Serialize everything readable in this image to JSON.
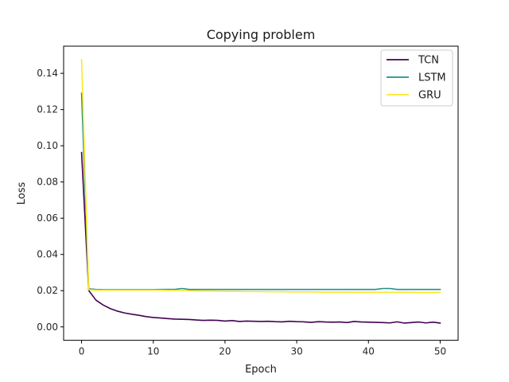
{
  "chart_data": {
    "type": "line",
    "title": "Copying problem",
    "xlabel": "Epoch",
    "ylabel": "Loss",
    "xlim": [
      -2.5,
      52.5
    ],
    "ylim": [
      -0.0074,
      0.155
    ],
    "xticks": [
      0,
      10,
      20,
      30,
      40,
      50
    ],
    "xtick_labels": [
      "0",
      "10",
      "20",
      "30",
      "40",
      "50"
    ],
    "yticks": [
      0.0,
      0.02,
      0.04,
      0.06,
      0.08,
      0.1,
      0.12,
      0.14
    ],
    "ytick_labels": [
      "0.00",
      "0.02",
      "0.04",
      "0.06",
      "0.08",
      "0.10",
      "0.12",
      "0.14"
    ],
    "grid": false,
    "legend_position": "top-right",
    "x": [
      0,
      1,
      2,
      3,
      4,
      5,
      6,
      7,
      8,
      9,
      10,
      11,
      12,
      13,
      14,
      15,
      16,
      17,
      18,
      19,
      20,
      21,
      22,
      23,
      24,
      25,
      26,
      27,
      28,
      29,
      30,
      31,
      32,
      33,
      34,
      35,
      36,
      37,
      38,
      39,
      40,
      41,
      42,
      43,
      44,
      45,
      46,
      47,
      48,
      49,
      50
    ],
    "series": [
      {
        "name": "TCN",
        "color": "#440154",
        "values": [
          0.0963,
          0.0201,
          0.0148,
          0.0121,
          0.0101,
          0.0087,
          0.0077,
          0.007,
          0.0064,
          0.0057,
          0.0052,
          0.0049,
          0.0046,
          0.0043,
          0.0042,
          0.0041,
          0.0038,
          0.0036,
          0.0037,
          0.0036,
          0.0032,
          0.0035,
          0.003,
          0.0032,
          0.0031,
          0.003,
          0.0031,
          0.0029,
          0.0028,
          0.0031,
          0.0029,
          0.0028,
          0.0025,
          0.0029,
          0.0027,
          0.0026,
          0.0027,
          0.0024,
          0.003,
          0.0027,
          0.0026,
          0.0025,
          0.0024,
          0.0022,
          0.0028,
          0.0021,
          0.0024,
          0.0027,
          0.0022,
          0.0026,
          0.0021
        ]
      },
      {
        "name": "LSTM",
        "color": "#21918c",
        "values": [
          0.129,
          0.021,
          0.0207,
          0.0206,
          0.0206,
          0.0206,
          0.0206,
          0.0206,
          0.0206,
          0.0206,
          0.0206,
          0.0207,
          0.0207,
          0.0207,
          0.0212,
          0.0207,
          0.0207,
          0.0207,
          0.0207,
          0.0207,
          0.0207,
          0.0207,
          0.0207,
          0.0207,
          0.0207,
          0.0207,
          0.0207,
          0.0207,
          0.0207,
          0.0207,
          0.0207,
          0.0207,
          0.0207,
          0.0207,
          0.0207,
          0.0207,
          0.0207,
          0.0207,
          0.0207,
          0.0207,
          0.0207,
          0.0207,
          0.0212,
          0.0212,
          0.0207,
          0.0207,
          0.0207,
          0.0207,
          0.0207,
          0.0207,
          0.0207
        ]
      },
      {
        "name": "GRU",
        "color": "#fde725",
        "values": [
          0.1475,
          0.0205,
          0.0203,
          0.0203,
          0.0203,
          0.0203,
          0.0203,
          0.0203,
          0.0203,
          0.0203,
          0.0203,
          0.0203,
          0.0202,
          0.0202,
          0.0201,
          0.02,
          0.0199,
          0.0198,
          0.0198,
          0.0197,
          0.0197,
          0.0196,
          0.0196,
          0.0195,
          0.0195,
          0.0195,
          0.0194,
          0.0194,
          0.0194,
          0.0193,
          0.0193,
          0.0193,
          0.0193,
          0.0192,
          0.0192,
          0.0192,
          0.0192,
          0.0192,
          0.0191,
          0.0191,
          0.0191,
          0.0191,
          0.0191,
          0.0191,
          0.0191,
          0.0191,
          0.0191,
          0.019,
          0.019,
          0.019,
          0.019
        ]
      }
    ]
  }
}
